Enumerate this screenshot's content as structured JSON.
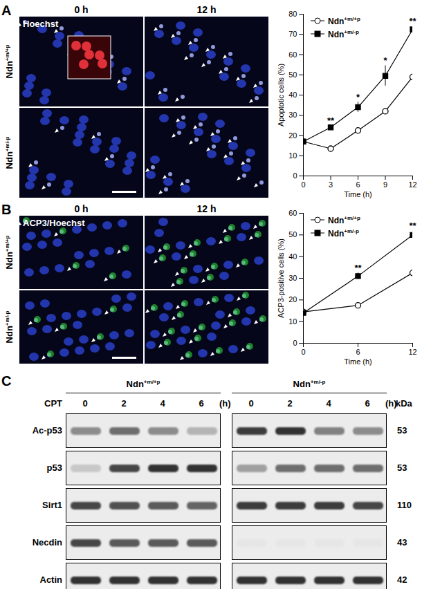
{
  "panels": [
    {
      "label": "A",
      "image_label": "Hoechst",
      "columns": [
        "0 h",
        "12 h"
      ],
      "rows": [
        "Ndn+m/+p",
        "Ndn+m/-p"
      ]
    },
    {
      "label": "B",
      "image_label": "ACP3/Hoechst",
      "columns": [
        "0 h",
        "12 h"
      ],
      "rows": [
        "Ndn+m/+p",
        "Ndn+m/-p"
      ]
    },
    {
      "label": "C",
      "treatment": "CPT",
      "time_points": [
        0,
        2,
        4,
        6
      ],
      "time_unit": "(h)",
      "mw_unit": "kDa",
      "groups": [
        "Ndn+m/+p",
        "Ndn+m/-p"
      ],
      "blots": [
        {
          "name": "Ac-p53",
          "mw": 53,
          "bands": [
            [
              0.45,
              0.6,
              0.45,
              0.25
            ],
            [
              0.85,
              0.9,
              0.5,
              0.45
            ]
          ]
        },
        {
          "name": "p53",
          "mw": 53,
          "bands": [
            [
              0.15,
              0.8,
              0.9,
              0.9
            ],
            [
              0.35,
              0.6,
              0.6,
              0.6
            ]
          ]
        },
        {
          "name": "Sirt1",
          "mw": 110,
          "bands": [
            [
              0.8,
              0.75,
              0.7,
              0.65
            ],
            [
              0.85,
              0.85,
              0.85,
              0.8
            ]
          ]
        },
        {
          "name": "Necdin",
          "mw": 43,
          "bands": [
            [
              0.8,
              0.7,
              0.7,
              0.7
            ],
            [
              0,
              0,
              0,
              0
            ]
          ]
        },
        {
          "name": "Actin",
          "mw": 42,
          "bands": [
            [
              0.9,
              0.9,
              0.9,
              0.9
            ],
            [
              0.9,
              0.9,
              0.9,
              0.9
            ]
          ]
        }
      ]
    }
  ],
  "chart_data": [
    {
      "type": "line",
      "x_label": "Time (h)",
      "y_label": "Apoptotic cells (%)",
      "x": [
        0,
        3,
        6,
        9,
        12
      ],
      "xlim": [
        0,
        12
      ],
      "xticks": [
        0,
        3,
        6,
        9,
        12
      ],
      "ylim": [
        0,
        80
      ],
      "yticks": [
        0,
        10,
        20,
        30,
        40,
        50,
        60,
        70,
        80
      ],
      "legend": "top-left",
      "annotations": [
        null,
        "**",
        "*",
        "*",
        "**"
      ],
      "series": [
        {
          "name": "Ndn+m/+p",
          "color": "#000000",
          "marker": "circle-open",
          "values": [
            17,
            13.5,
            22.5,
            32,
            49
          ],
          "errors": [
            0.5,
            0.5,
            1,
            1,
            1.5
          ]
        },
        {
          "name": "Ndn+m/-p",
          "color": "#000000",
          "marker": "square",
          "values": [
            17,
            24,
            34,
            49.5,
            72.5
          ],
          "errors": [
            0.5,
            1,
            2.5,
            5,
            1.5
          ]
        }
      ]
    },
    {
      "type": "line",
      "x_label": "Time (h)",
      "y_label": "ACP3-positive cells (%)",
      "x": [
        0,
        6,
        12
      ],
      "xlim": [
        0,
        12
      ],
      "xticks": [
        0,
        6,
        12
      ],
      "ylim": [
        0,
        60
      ],
      "yticks": [
        0,
        10,
        20,
        30,
        40,
        50,
        60
      ],
      "legend": "top-left",
      "annotations": [
        null,
        "**",
        "**"
      ],
      "series": [
        {
          "name": "Ndn+m/+p",
          "color": "#000000",
          "marker": "circle-open",
          "values": [
            14.5,
            17.5,
            32.5
          ],
          "errors": [
            1,
            1,
            2
          ]
        },
        {
          "name": "Ndn+m/-p",
          "color": "#000000",
          "marker": "square",
          "values": [
            14,
            31,
            50
          ],
          "errors": [
            1,
            1.5,
            2
          ]
        }
      ]
    }
  ]
}
